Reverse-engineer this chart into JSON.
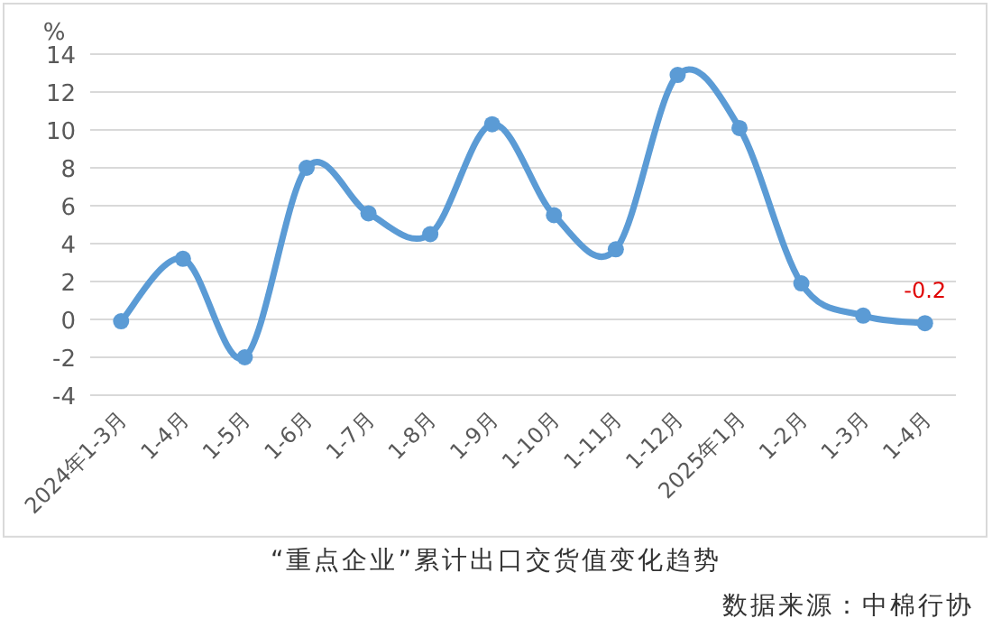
{
  "chart_data": {
    "type": "line",
    "title": "“重点企业”累计出口交货值变化趋势",
    "ylabel": "%",
    "annotations": [
      "数据来源：中棉行协"
    ],
    "categories": [
      "2024年1-3月",
      "1-4月",
      "1-5月",
      "1-6月",
      "1-7月",
      "1-8月",
      "1-9月",
      "1-10月",
      "1-11月",
      "1-12月",
      "2025年1月",
      "1-2月",
      "1-3月",
      "1-4月"
    ],
    "series": [
      {
        "color": "#5b9bd5",
        "values": [
          -0.1,
          3.2,
          -2.0,
          8.0,
          5.6,
          4.5,
          10.3,
          5.5,
          3.7,
          12.9,
          10.1,
          1.9,
          0.2,
          -0.2
        ],
        "value_labels": [
          null,
          null,
          null,
          null,
          null,
          null,
          null,
          null,
          null,
          null,
          null,
          null,
          null,
          "-0.2"
        ]
      }
    ],
    "ylim": [
      -4,
      14
    ],
    "yticks": [
      -4,
      -2,
      0,
      2,
      4,
      6,
      8,
      10,
      12,
      14
    ],
    "grid": "y",
    "marker": "circle",
    "line_style": "solid"
  }
}
